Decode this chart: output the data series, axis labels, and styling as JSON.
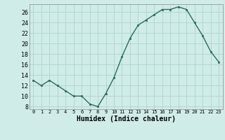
{
  "x": [
    0,
    1,
    2,
    3,
    4,
    5,
    6,
    7,
    8,
    9,
    10,
    11,
    12,
    13,
    14,
    15,
    16,
    17,
    18,
    19,
    20,
    21,
    22,
    23
  ],
  "y": [
    13,
    12,
    13,
    12,
    11,
    10,
    10,
    8.5,
    8,
    10.5,
    13.5,
    17.5,
    21,
    23.5,
    24.5,
    25.5,
    26.5,
    26.5,
    27,
    26.5,
    24,
    21.5,
    18.5,
    16.5
  ],
  "xlabel": "Humidex (Indice chaleur)",
  "ylim": [
    7.5,
    27.5
  ],
  "xlim": [
    -0.5,
    23.5
  ],
  "yticks": [
    8,
    10,
    12,
    14,
    16,
    18,
    20,
    22,
    24,
    26
  ],
  "xtick_labels": [
    "0",
    "1",
    "2",
    "3",
    "4",
    "5",
    "6",
    "7",
    "8",
    "9",
    "10",
    "11",
    "12",
    "13",
    "14",
    "15",
    "16",
    "17",
    "18",
    "19",
    "20",
    "21",
    "22",
    "23"
  ],
  "line_color": "#2a6b5e",
  "marker_color": "#2a6b5e",
  "bg_color": "#d0ece8",
  "grid_color": "#b0d8d0",
  "xlabel_fontsize": 7,
  "tick_fontsize": 5,
  "ytick_fontsize": 6
}
